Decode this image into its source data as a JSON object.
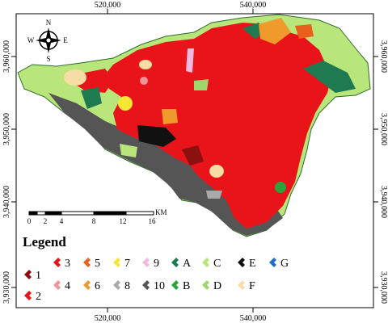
{
  "axes": {
    "x_ticks": [
      "520,000",
      "540,000"
    ],
    "y_ticks": [
      "3,960,000",
      "3,950,000",
      "3,940,000",
      "3,930,000"
    ]
  },
  "north_arrow": {
    "n": "N",
    "s": "S",
    "e": "E",
    "w": "W"
  },
  "scale_bar": {
    "ticks": [
      "0",
      "2",
      "4",
      "8",
      "12",
      "16"
    ],
    "unit": "KM"
  },
  "legend": {
    "title": "Legend",
    "items": [
      {
        "label": "1",
        "color": "#8b1010"
      },
      {
        "label": "2",
        "color": "#e8141a"
      },
      {
        "label": "3",
        "color": "#e8141a"
      },
      {
        "label": "4",
        "color": "#f2939a"
      },
      {
        "label": "5",
        "color": "#e8601c"
      },
      {
        "label": "6",
        "color": "#f09a2b"
      },
      {
        "label": "7",
        "color": "#f5e633"
      },
      {
        "label": "8",
        "color": "#a9a9a9"
      },
      {
        "label": "9",
        "color": "#f4b8e0"
      },
      {
        "label": "10",
        "color": "#555555"
      },
      {
        "label": "A",
        "color": "#1f7a52"
      },
      {
        "label": "B",
        "color": "#2aa33b"
      },
      {
        "label": "C",
        "color": "#b8e67a"
      },
      {
        "label": "D",
        "color": "#9ed66a"
      },
      {
        "label": "E",
        "color": "#111111"
      },
      {
        "label": "F",
        "color": "#f7dca6"
      },
      {
        "label": "G",
        "color": "#1f6fd1"
      }
    ]
  }
}
